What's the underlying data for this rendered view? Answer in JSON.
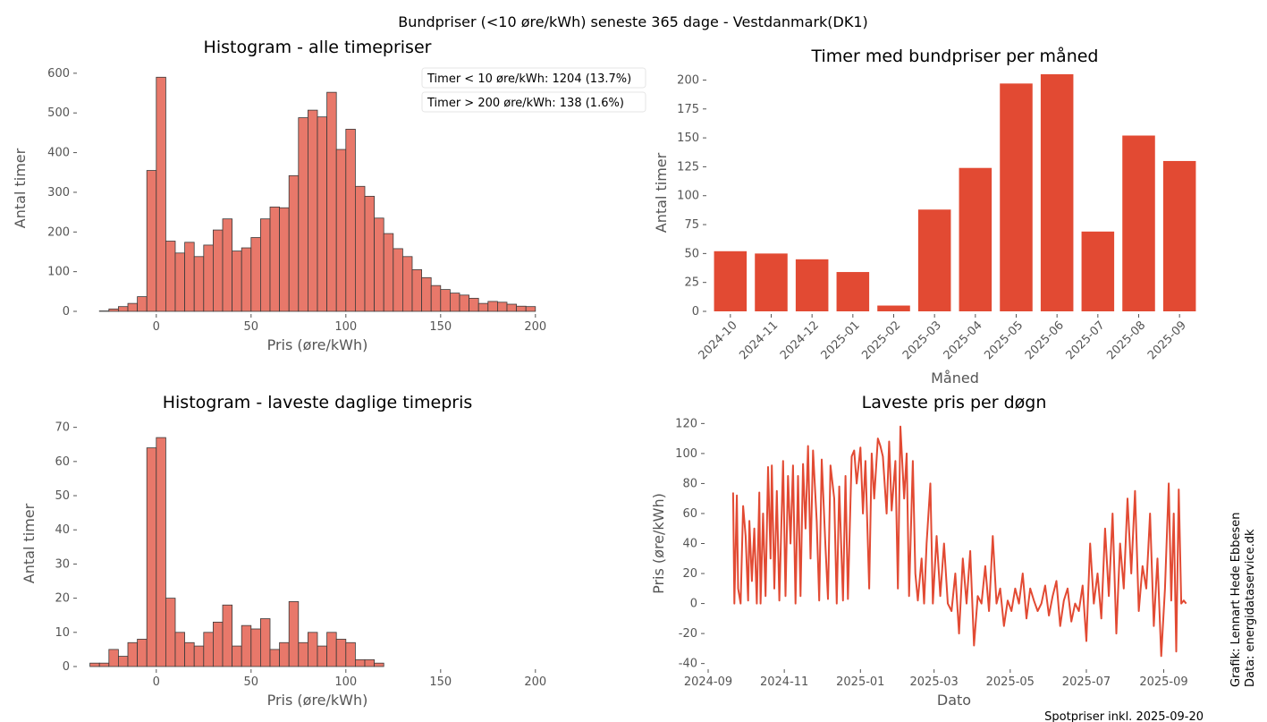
{
  "figure": {
    "suptitle": "Bundpriser (<10 øre/kWh) seneste 365 dage - Vestdanmark(DK1)",
    "credit_line1": "Grafik: Lennart Hede Ebbesen",
    "credit_line2": "Data: energidataservice.dk",
    "footer": "Spotpriser inkl. 2025-09-20"
  },
  "colors": {
    "hist_fill": "#E8786A",
    "hist_edge": "#3a3a3a",
    "bar_fill": "#E24A33",
    "line": "#E24A33",
    "axis_text": "#555555",
    "title_text": "#000000"
  },
  "chart_data": [
    {
      "id": "hist_all",
      "type": "bar",
      "title": "Histogram - alle timepriser",
      "xlabel": "Pris (øre/kWh)",
      "ylabel": "Antal timer",
      "xlim": [
        -40,
        210
      ],
      "ylim": [
        0,
        620
      ],
      "xticks": [
        0,
        50,
        100,
        150,
        200
      ],
      "yticks": [
        0,
        100,
        200,
        300,
        400,
        500,
        600
      ],
      "annotations": [
        "Timer < 10 øre/kWh: 1204 (13.7%)",
        "Timer > 200 øre/kWh: 138 (1.6%)"
      ],
      "bin_start": -30,
      "bin_width": 5,
      "values": [
        1,
        6,
        12,
        20,
        37,
        355,
        590,
        177,
        147,
        174,
        138,
        167,
        205,
        233,
        152,
        160,
        186,
        233,
        263,
        261,
        342,
        488,
        507,
        490,
        552,
        408,
        459,
        315,
        290,
        235,
        196,
        158,
        138,
        105,
        85,
        65,
        55,
        46,
        41,
        33,
        20,
        25,
        23,
        18,
        13,
        12
      ]
    },
    {
      "id": "bar_month",
      "type": "bar",
      "title": "Timer med bundpriser per måned",
      "xlabel": "Måned",
      "ylabel": "Antal timer",
      "ylim": [
        0,
        205
      ],
      "yticks": [
        0,
        25,
        50,
        75,
        100,
        125,
        150,
        175,
        200
      ],
      "categories": [
        "2024-10",
        "2024-11",
        "2024-12",
        "2025-01",
        "2025-02",
        "2025-03",
        "2025-04",
        "2025-05",
        "2025-06",
        "2025-07",
        "2025-08",
        "2025-09"
      ],
      "values": [
        52,
        50,
        45,
        34,
        5,
        88,
        124,
        197,
        205,
        69,
        152,
        130
      ]
    },
    {
      "id": "hist_daily_min",
      "type": "bar",
      "title": "Histogram - laveste daglige timepris",
      "xlabel": "Pris (øre/kWh)",
      "ylabel": "Antal timer",
      "xlim": [
        -40,
        210
      ],
      "ylim": [
        0,
        72
      ],
      "xticks": [
        0,
        50,
        100,
        150,
        200
      ],
      "yticks": [
        0,
        10,
        20,
        30,
        40,
        50,
        60,
        70
      ],
      "bin_start": -35,
      "bin_width": 5,
      "values": [
        1,
        1,
        5,
        3,
        7,
        8,
        64,
        67,
        20,
        10,
        7,
        6,
        10,
        13,
        18,
        6,
        12,
        11,
        14,
        5,
        7,
        19,
        7,
        10,
        6,
        10,
        8,
        7,
        2,
        2,
        1
      ]
    },
    {
      "id": "line_daily_min",
      "type": "line",
      "title": "Laveste pris per døgn",
      "xlabel": "Dato",
      "ylabel": "Pris (øre/kWh)",
      "xlim": [
        "2024-09-01",
        "2025-09-30"
      ],
      "ylim": [
        -42,
        122
      ],
      "xticks": [
        "2024-09",
        "2024-11",
        "2025-01",
        "2025-03",
        "2025-05",
        "2025-07",
        "2025-09"
      ],
      "yticks": [
        -40,
        -20,
        0,
        20,
        40,
        60,
        80,
        100,
        120
      ],
      "x": [
        "2024-09-21",
        "2024-09-22",
        "2024-09-24",
        "2024-09-25",
        "2024-09-27",
        "2024-09-29",
        "2024-10-01",
        "2024-10-03",
        "2024-10-04",
        "2024-10-06",
        "2024-10-08",
        "2024-10-10",
        "2024-10-12",
        "2024-10-13",
        "2024-10-15",
        "2024-10-17",
        "2024-10-19",
        "2024-10-21",
        "2024-10-22",
        "2024-10-24",
        "2024-10-26",
        "2024-10-28",
        "2024-10-31",
        "2024-11-02",
        "2024-11-04",
        "2024-11-06",
        "2024-11-08",
        "2024-11-10",
        "2024-11-12",
        "2024-11-14",
        "2024-11-16",
        "2024-11-18",
        "2024-11-20",
        "2024-11-22",
        "2024-11-24",
        "2024-11-27",
        "2024-11-29",
        "2024-12-01",
        "2024-12-04",
        "2024-12-06",
        "2024-12-08",
        "2024-12-11",
        "2024-12-13",
        "2024-12-15",
        "2024-12-18",
        "2024-12-20",
        "2024-12-22",
        "2024-12-25",
        "2024-12-27",
        "2024-12-29",
        "2025-01-01",
        "2025-01-03",
        "2025-01-05",
        "2025-01-08",
        "2025-01-10",
        "2025-01-12",
        "2025-01-15",
        "2025-01-17",
        "2025-01-19",
        "2025-01-22",
        "2025-01-24",
        "2025-01-26",
        "2025-01-29",
        "2025-01-31",
        "2025-02-02",
        "2025-02-05",
        "2025-02-07",
        "2025-02-09",
        "2025-02-12",
        "2025-02-14",
        "2025-02-16",
        "2025-02-19",
        "2025-02-21",
        "2025-02-23",
        "2025-02-26",
        "2025-02-28",
        "2025-03-03",
        "2025-03-06",
        "2025-03-09",
        "2025-03-12",
        "2025-03-15",
        "2025-03-18",
        "2025-03-21",
        "2025-03-24",
        "2025-03-27",
        "2025-03-30",
        "2025-04-02",
        "2025-04-05",
        "2025-04-08",
        "2025-04-11",
        "2025-04-14",
        "2025-04-17",
        "2025-04-20",
        "2025-04-23",
        "2025-04-26",
        "2025-04-29",
        "2025-05-02",
        "2025-05-05",
        "2025-05-08",
        "2025-05-11",
        "2025-05-14",
        "2025-05-17",
        "2025-05-20",
        "2025-05-23",
        "2025-05-26",
        "2025-05-29",
        "2025-06-01",
        "2025-06-04",
        "2025-06-07",
        "2025-06-10",
        "2025-06-13",
        "2025-06-16",
        "2025-06-19",
        "2025-06-22",
        "2025-06-25",
        "2025-06-28",
        "2025-07-01",
        "2025-07-04",
        "2025-07-07",
        "2025-07-10",
        "2025-07-13",
        "2025-07-16",
        "2025-07-19",
        "2025-07-22",
        "2025-07-25",
        "2025-07-28",
        "2025-07-31",
        "2025-08-03",
        "2025-08-06",
        "2025-08-09",
        "2025-08-12",
        "2025-08-15",
        "2025-08-18",
        "2025-08-21",
        "2025-08-24",
        "2025-08-27",
        "2025-08-30",
        "2025-09-02",
        "2025-09-05",
        "2025-09-07",
        "2025-09-09",
        "2025-09-11",
        "2025-09-13",
        "2025-09-15",
        "2025-09-17",
        "2025-09-19"
      ],
      "values": [
        74,
        0,
        72,
        10,
        0,
        65,
        45,
        2,
        55,
        15,
        50,
        0,
        74,
        0,
        60,
        5,
        91,
        30,
        92,
        10,
        75,
        2,
        95,
        5,
        85,
        40,
        92,
        0,
        85,
        5,
        93,
        50,
        105,
        30,
        102,
        55,
        2,
        96,
        38,
        3,
        92,
        70,
        0,
        78,
        2,
        85,
        3,
        98,
        102,
        80,
        104,
        60,
        95,
        10,
        100,
        70,
        110,
        105,
        98,
        60,
        108,
        62,
        95,
        10,
        118,
        70,
        100,
        5,
        95,
        20,
        2,
        30,
        0,
        40,
        80,
        0,
        45,
        5,
        40,
        0,
        -5,
        20,
        -20,
        30,
        0,
        35,
        -28,
        5,
        0,
        25,
        -5,
        45,
        0,
        10,
        -15,
        2,
        -5,
        10,
        0,
        20,
        -10,
        10,
        2,
        -5,
        0,
        12,
        -8,
        5,
        15,
        -15,
        2,
        10,
        -12,
        0,
        -5,
        12,
        -25,
        40,
        0,
        20,
        -10,
        50,
        5,
        60,
        -20,
        40,
        10,
        70,
        20,
        75,
        -5,
        25,
        10,
        60,
        -15,
        30,
        -35,
        10,
        80,
        2,
        60,
        -32,
        76,
        0,
        2,
        0
      ]
    }
  ]
}
